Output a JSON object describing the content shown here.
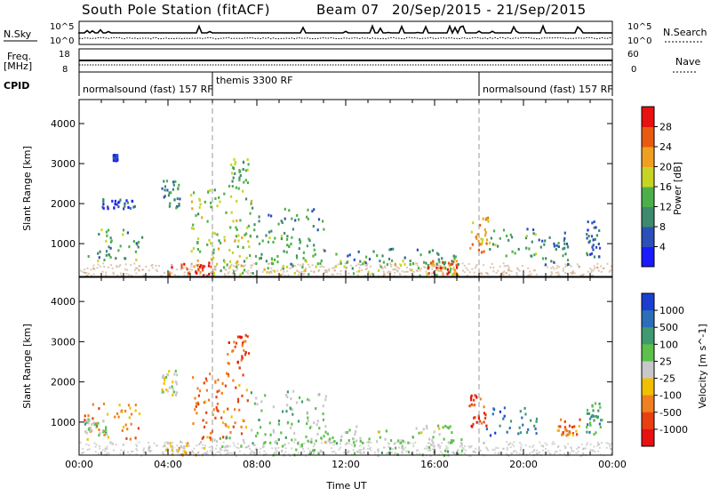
{
  "header": {
    "station": "South Pole Station (fitACF)",
    "beam": "Beam 07",
    "date_range": "20/Sep/2015 - 21/Sep/2015"
  },
  "top_strips": {
    "nsky_label": "N.Sky",
    "nsearch_label": "N.Search",
    "freq_label_line1": "Freq.",
    "freq_label_line2": "[MHz]",
    "nave_label": "Nave",
    "cpid_label": "CPID",
    "left_ticks_top": [
      "10^5",
      "10^0"
    ],
    "right_ticks_top": [
      "10^5",
      "10^0"
    ],
    "left_ticks_freq": [
      "18",
      "8"
    ],
    "right_ticks_nave": [
      "60",
      "0"
    ],
    "cpid_segments": [
      {
        "label": "normalsound (fast) 157 RF",
        "start_hour": 0.0
      },
      {
        "label": "themis 3300 RF",
        "start_hour": 6.0
      },
      {
        "label": "normalsound (fast) 157 RF",
        "start_hour": 18.0
      }
    ]
  },
  "chart_data": [
    {
      "type": "heatmap",
      "name": "power",
      "xlabel": "",
      "ylabel": "Slant Range [km]",
      "xlim": [
        0,
        24
      ],
      "ylim": [
        180,
        4600
      ],
      "yticks": [
        1000,
        2000,
        3000,
        4000
      ],
      "colorbar_label": "Power [dB]",
      "colorbar_ticks": [
        "4",
        "8",
        "12",
        "16",
        "20",
        "24",
        "28"
      ],
      "colorbar_colors": [
        "#1a1aff",
        "#2c4fb8",
        "#3d8a6e",
        "#4cb04a",
        "#c8d424",
        "#f0a020",
        "#e85a10",
        "#e81010"
      ],
      "color_range": [
        0,
        32
      ],
      "regions": [
        {
          "x0": 0.2,
          "x1": 2.9,
          "y0": 600,
          "y1": 1400,
          "v": 12
        },
        {
          "x0": 1.5,
          "x1": 1.7,
          "y0": 3100,
          "y1": 3250,
          "v": 4
        },
        {
          "x0": 1.0,
          "x1": 2.5,
          "y0": 1900,
          "y1": 2150,
          "v": 6
        },
        {
          "x0": 3.7,
          "x1": 4.5,
          "y0": 1900,
          "y1": 2600,
          "v": 10
        },
        {
          "x0": 4.0,
          "x1": 6.0,
          "y0": 200,
          "y1": 550,
          "v": 28
        },
        {
          "x0": 5.0,
          "x1": 7.8,
          "y0": 600,
          "y1": 2400,
          "v": 16
        },
        {
          "x0": 6.7,
          "x1": 7.6,
          "y0": 2400,
          "y1": 3200,
          "v": 14
        },
        {
          "x0": 7.8,
          "x1": 11.0,
          "y0": 500,
          "y1": 1900,
          "v": 12
        },
        {
          "x0": 6.0,
          "x1": 17.2,
          "y0": 200,
          "y1": 600,
          "v": 16
        },
        {
          "x0": 15.5,
          "x1": 17.0,
          "y0": 250,
          "y1": 600,
          "v": 26
        },
        {
          "x0": 11.0,
          "x1": 17.0,
          "y0": 500,
          "y1": 900,
          "v": 10
        },
        {
          "x0": 17.5,
          "x1": 18.4,
          "y0": 800,
          "y1": 1700,
          "v": 22
        },
        {
          "x0": 18.4,
          "x1": 20.6,
          "y0": 700,
          "y1": 1400,
          "v": 12
        },
        {
          "x0": 20.6,
          "x1": 22.0,
          "y0": 500,
          "y1": 1300,
          "v": 8
        },
        {
          "x0": 22.8,
          "x1": 23.4,
          "y0": 700,
          "y1": 1600,
          "v": 8
        }
      ]
    },
    {
      "type": "heatmap",
      "name": "velocity",
      "xlabel": "Time UT",
      "ylabel": "Slant Range [km]",
      "xlim": [
        0,
        24
      ],
      "ylim": [
        180,
        4600
      ],
      "yticks": [
        1000,
        2000,
        3000,
        4000
      ],
      "xticks": [
        "00:00",
        "04:00",
        "08:00",
        "12:00",
        "16:00",
        "20:00",
        "00:00"
      ],
      "colorbar_label": "Velocity [m s^-1]",
      "colorbar_ticks": [
        "1000",
        "500",
        "100",
        "25",
        "-25",
        "-100",
        "-500",
        "-1000"
      ],
      "colorbar_colors": [
        "#1a3fd0",
        "#2d6eb8",
        "#3f9a70",
        "#5cc04a",
        "#c8c8c8",
        "#f0c000",
        "#f08020",
        "#e84010",
        "#e81010"
      ],
      "color_range": [
        -1000,
        1000
      ],
      "regions": [
        {
          "x0": 0.2,
          "x1": 2.7,
          "y0": 600,
          "y1": 1500,
          "v": -400
        },
        {
          "x0": 0.2,
          "x1": 1.2,
          "y0": 700,
          "y1": 1100,
          "v": 200
        },
        {
          "x0": 3.6,
          "x1": 4.4,
          "y0": 1700,
          "y1": 2300,
          "v": -50
        },
        {
          "x0": 3.8,
          "x1": 5.6,
          "y0": 200,
          "y1": 550,
          "v": -200
        },
        {
          "x0": 5.0,
          "x1": 7.6,
          "y0": 600,
          "y1": 2300,
          "v": -500
        },
        {
          "x0": 6.6,
          "x1": 7.6,
          "y0": 2300,
          "y1": 3200,
          "v": -600
        },
        {
          "x0": 7.7,
          "x1": 11.2,
          "y0": 500,
          "y1": 1800,
          "v": 150
        },
        {
          "x0": 6.0,
          "x1": 17.2,
          "y0": 200,
          "y1": 650,
          "v": 150
        },
        {
          "x0": 11.0,
          "x1": 17.2,
          "y0": 500,
          "y1": 950,
          "v": 80
        },
        {
          "x0": 17.5,
          "x1": 18.3,
          "y0": 900,
          "y1": 1700,
          "v": -700
        },
        {
          "x0": 18.3,
          "x1": 20.6,
          "y0": 700,
          "y1": 1400,
          "v": 600
        },
        {
          "x0": 21.5,
          "x1": 22.5,
          "y0": 700,
          "y1": 1100,
          "v": -500
        },
        {
          "x0": 22.8,
          "x1": 23.5,
          "y0": 700,
          "y1": 1500,
          "v": 400
        }
      ]
    }
  ]
}
